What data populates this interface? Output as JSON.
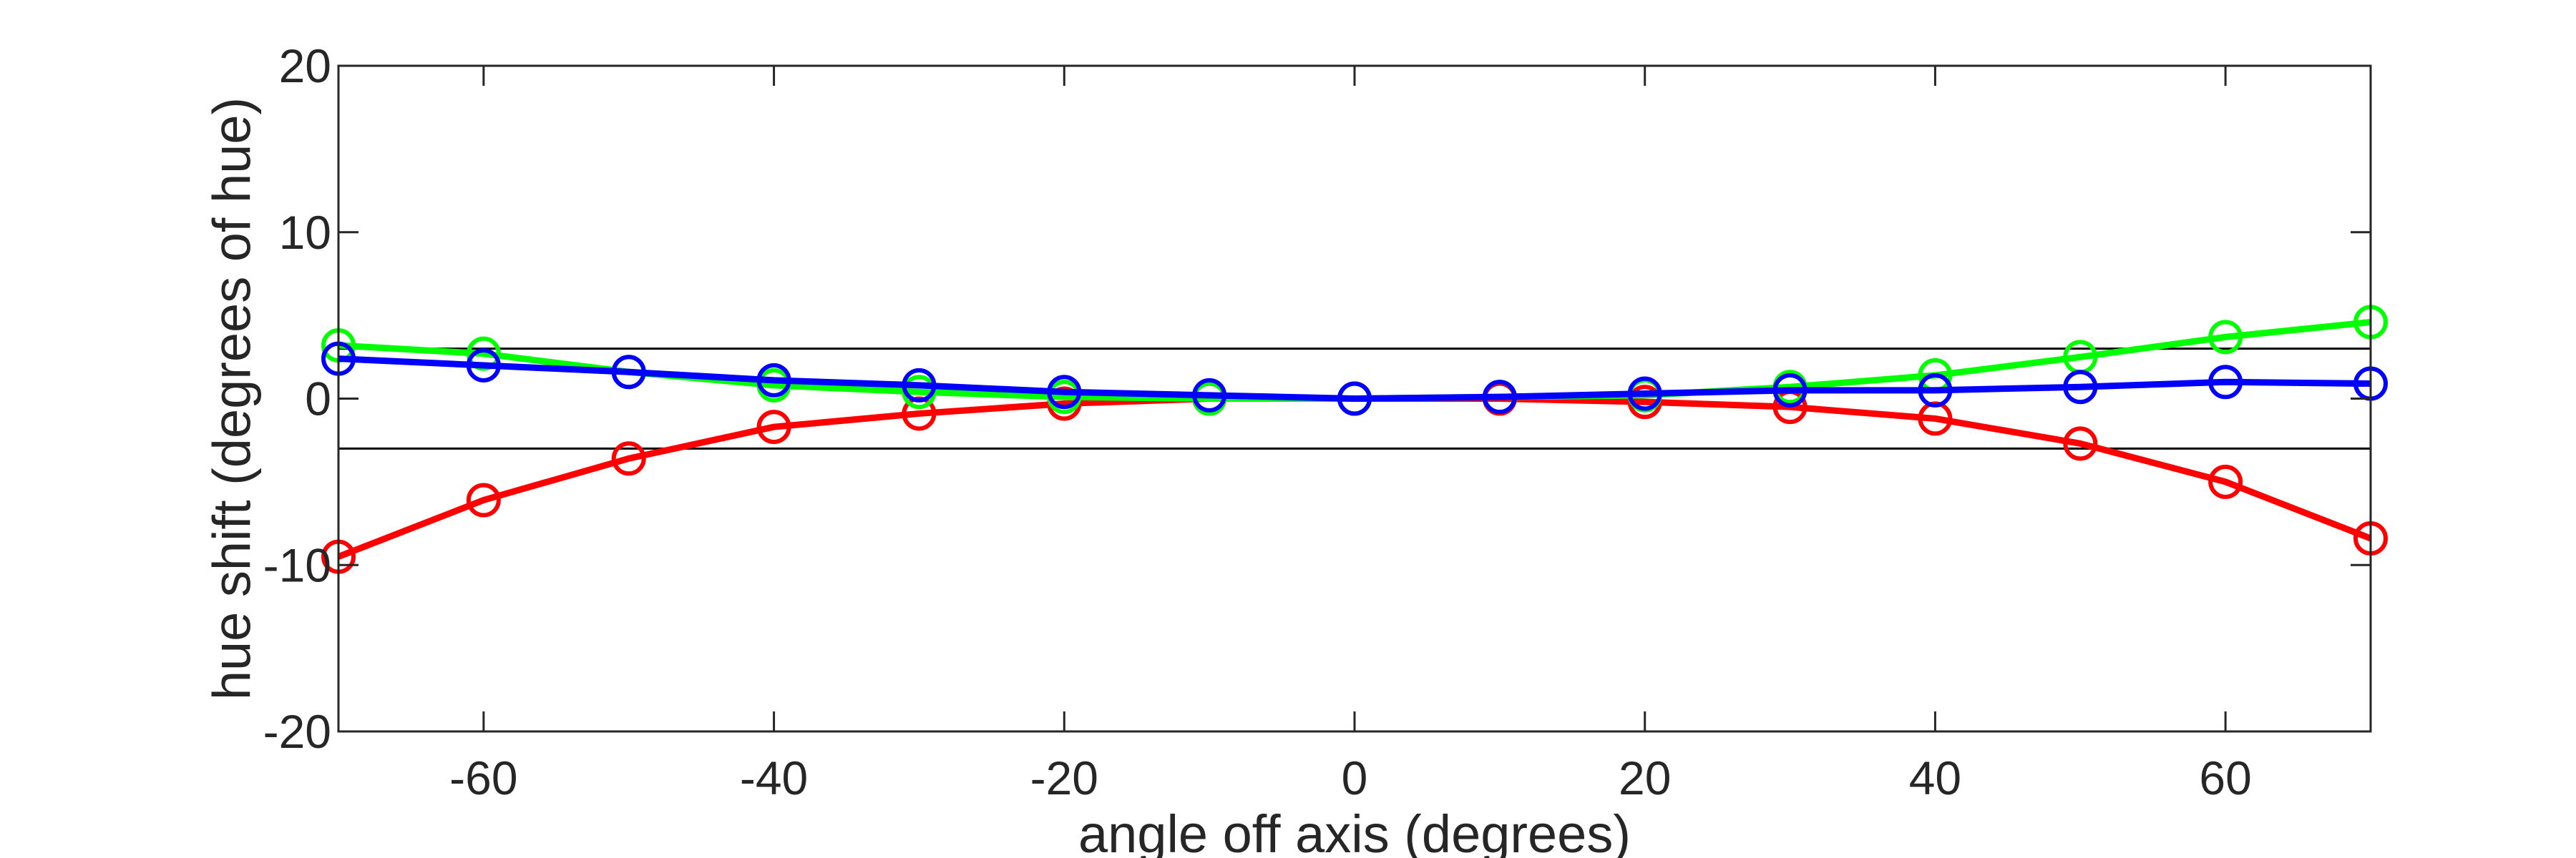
{
  "chart_data": {
    "type": "line",
    "title": "",
    "xlabel": "angle off axis (degrees)",
    "ylabel": "hue shift (degrees of hue)",
    "xlim": [
      -70,
      70
    ],
    "ylim": [
      -20,
      20
    ],
    "xticks": [
      -60,
      -40,
      -20,
      0,
      20,
      40,
      60
    ],
    "yticks": [
      -20,
      -10,
      0,
      10,
      20
    ],
    "grid": false,
    "reference_lines": [
      3,
      -3
    ],
    "x": [
      -70,
      -60,
      -50,
      -40,
      -30,
      -20,
      -10,
      0,
      10,
      20,
      30,
      40,
      50,
      60,
      70
    ],
    "series": [
      {
        "color": "#ff0000",
        "values": [
          -9.5,
          -6.1,
          -3.6,
          -1.7,
          -0.9,
          -0.3,
          0.0,
          0.0,
          0.0,
          -0.2,
          -0.5,
          -1.2,
          -2.7,
          -5.0,
          -8.4
        ]
      },
      {
        "color": "#00ff00",
        "values": [
          3.2,
          2.7,
          1.6,
          0.8,
          0.4,
          0.1,
          0.0,
          0.0,
          0.1,
          0.2,
          0.7,
          1.4,
          2.5,
          3.7,
          4.6
        ]
      },
      {
        "color": "#0000ff",
        "values": [
          2.4,
          2.0,
          1.6,
          1.1,
          0.8,
          0.4,
          0.2,
          0.0,
          0.1,
          0.3,
          0.5,
          0.5,
          0.7,
          1.0,
          0.9
        ]
      }
    ]
  }
}
